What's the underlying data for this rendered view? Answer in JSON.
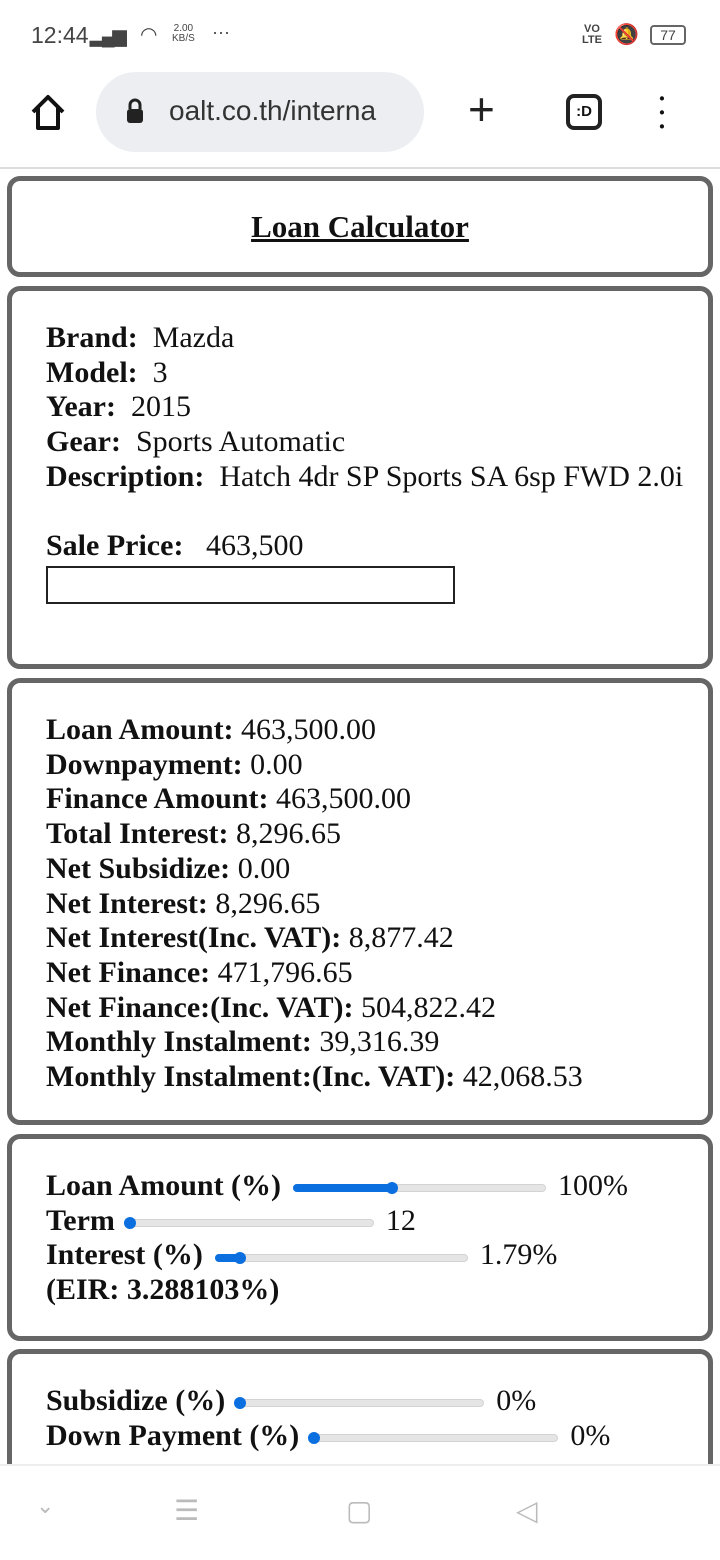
{
  "status_bar": {
    "time": "12:44",
    "net_speed": "2.00",
    "net_unit": "KB/S",
    "volte": "VO\nLTE",
    "battery": "77"
  },
  "browser": {
    "url": "oalt.co.th/interna",
    "tab_label": ":D"
  },
  "page": {
    "title": "Loan Calculator",
    "vehicle": [
      {
        "label": "Brand:",
        "value": "Mazda"
      },
      {
        "label": "Model:",
        "value": "3"
      },
      {
        "label": "Year:",
        "value": "2015"
      },
      {
        "label": "Gear:",
        "value": "Sports Automatic"
      },
      {
        "label": "Description:",
        "value": "Hatch 4dr SP Sports SA 6sp FWD 2.0i"
      }
    ],
    "sale_price": {
      "label": "Sale Price:",
      "value": "463,500",
      "input_value": ""
    },
    "results": [
      {
        "label": "Loan Amount:",
        "value": "463,500.00"
      },
      {
        "label": "Downpayment:",
        "value": "0.00"
      },
      {
        "label": "Finance Amount:",
        "value": "463,500.00"
      },
      {
        "label": "Total Interest:",
        "value": "8,296.65"
      },
      {
        "label": "Net Subsidize:",
        "value": "0.00"
      },
      {
        "label": "Net Interest:",
        "value": "8,296.65"
      },
      {
        "label": "Net Interest(Inc. VAT):",
        "value": "8,877.42"
      },
      {
        "label": "Net Finance:",
        "value": "471,796.65"
      },
      {
        "label": "Net Finance:(Inc. VAT):",
        "value": "504,822.42"
      },
      {
        "label": "Monthly Instalment:",
        "value": "39,316.39"
      },
      {
        "label": "Monthly Instalment:(Inc. VAT):",
        "value": "42,068.53"
      }
    ],
    "sliders": [
      {
        "label": "Loan Amount (%)",
        "value": "100%",
        "level": 0.39
      },
      {
        "label": "Term",
        "value": "12",
        "level": 0
      },
      {
        "label": "Interest (%)",
        "value": "1.79%",
        "level": 0.1
      }
    ],
    "eir": {
      "label": "(EIR:",
      "value": "3.288103%)"
    },
    "sliders2": [
      {
        "label": "Subsidize (%)",
        "value": "0%",
        "level": 0
      },
      {
        "label": "Down Payment (%)",
        "value": "0%",
        "level": 0
      }
    ],
    "accent_color": "#0b6fe0"
  }
}
